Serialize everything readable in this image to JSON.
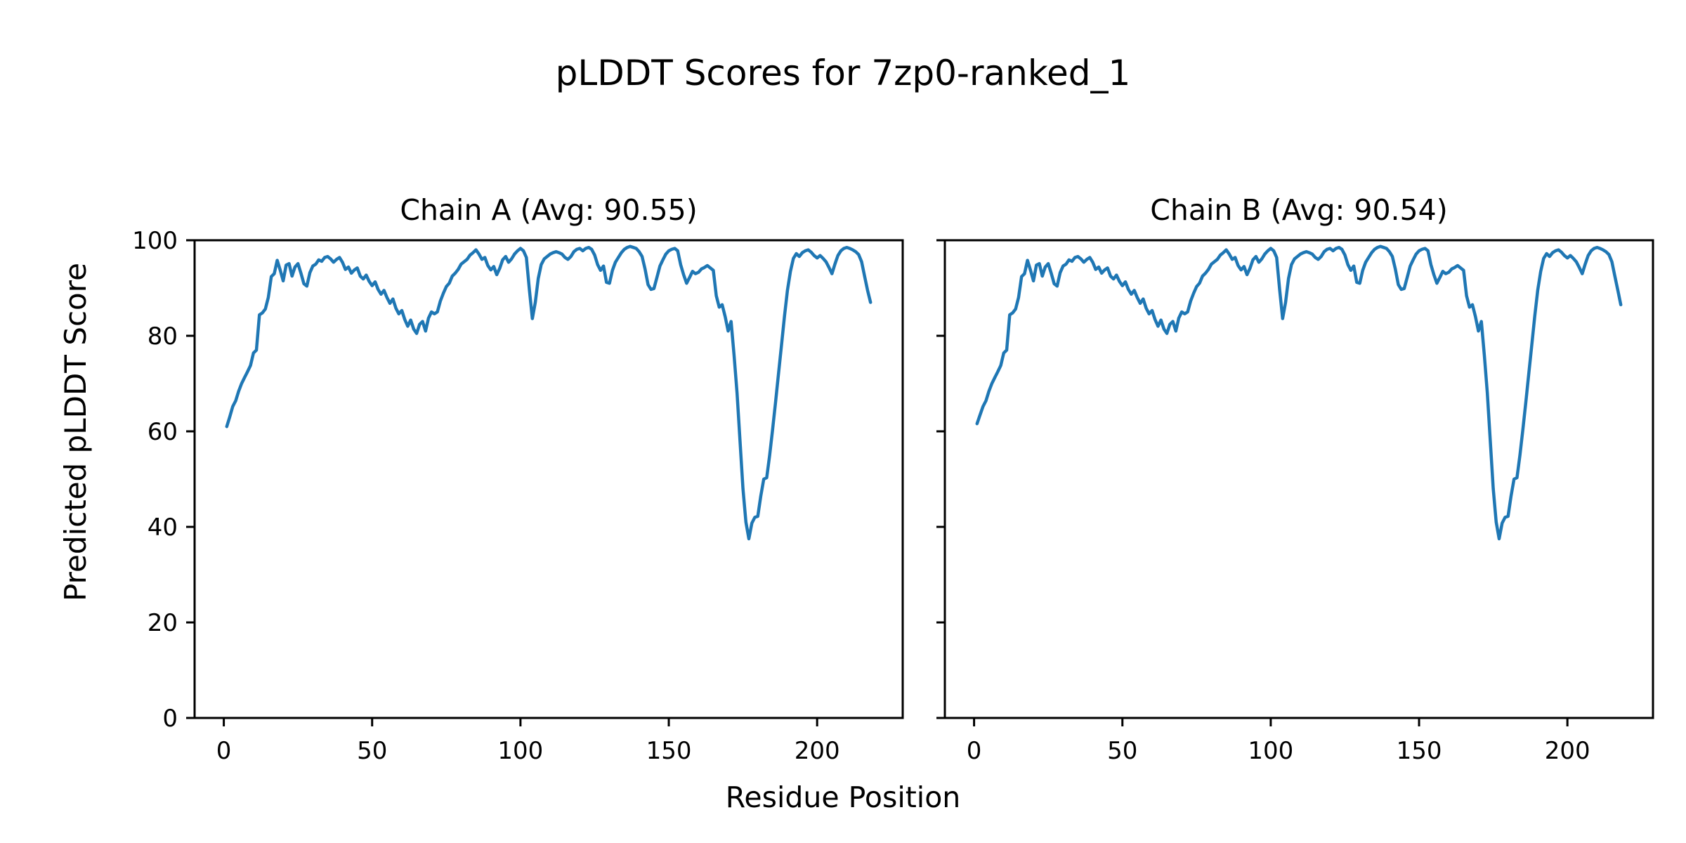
{
  "figure": {
    "title": "pLDDT Scores for 7zp0-ranked_1",
    "x_axis_label": "Residue Position",
    "y_axis_label": "Predicted pLDDT Score",
    "background_color": "#ffffff",
    "text_color": "#000000"
  },
  "chart_data": {
    "type": "line",
    "line_color": "#1f77b4",
    "axis_color": "#000000",
    "grid": false,
    "legend": "none",
    "x_ticks": [
      0,
      50,
      100,
      150,
      200
    ],
    "y_ticks": [
      0,
      20,
      40,
      60,
      80,
      100
    ],
    "xlim": [
      -9.85,
      228.85
    ],
    "ylim": [
      0,
      100
    ],
    "x_start": 1,
    "x_step": 1,
    "subplots": [
      {
        "title": "Chain A (Avg: 90.55)",
        "chain": "A",
        "avg": 90.55,
        "values": [
          61.0,
          63.0,
          65.2,
          66.4,
          68.4,
          70.0,
          71.3,
          72.5,
          73.8,
          76.4,
          77.0,
          84.4,
          84.8,
          85.6,
          88.0,
          92.4,
          93.0,
          95.8,
          93.8,
          91.5,
          94.8,
          95.1,
          92.5,
          94.4,
          95.1,
          93.1,
          90.9,
          90.4,
          93.2,
          94.6,
          95.0,
          95.9,
          95.6,
          96.4,
          96.6,
          96.1,
          95.4,
          96.0,
          96.4,
          95.4,
          93.9,
          94.4,
          93.1,
          93.8,
          94.2,
          92.5,
          91.9,
          92.7,
          91.4,
          90.5,
          91.3,
          89.7,
          88.7,
          89.5,
          88.0,
          86.8,
          87.7,
          85.8,
          84.6,
          85.3,
          83.4,
          82.0,
          83.3,
          81.4,
          80.5,
          82.4,
          83.0,
          81.0,
          83.7,
          85.0,
          84.6,
          85.0,
          87.3,
          88.9,
          90.3,
          91.0,
          92.5,
          93.1,
          93.9,
          95.0,
          95.5,
          96.0,
          96.9,
          97.4,
          98.0,
          97.1,
          96.0,
          96.4,
          94.7,
          93.8,
          94.5,
          92.8,
          94.1,
          95.9,
          96.6,
          95.4,
          96.1,
          97.1,
          97.8,
          98.3,
          97.8,
          96.4,
          89.6,
          83.6,
          87.0,
          92.0,
          94.9,
          96.1,
          96.6,
          97.1,
          97.4,
          97.6,
          97.4,
          97.1,
          96.4,
          96.0,
          96.6,
          97.6,
          98.1,
          98.3,
          97.8,
          98.3,
          98.5,
          98.1,
          96.9,
          94.9,
          93.7,
          94.6,
          91.2,
          91.0,
          93.7,
          95.4,
          96.4,
          97.4,
          98.1,
          98.5,
          98.7,
          98.5,
          98.3,
          97.6,
          96.6,
          94.0,
          90.7,
          89.7,
          89.9,
          92.2,
          94.6,
          95.9,
          97.1,
          97.8,
          98.1,
          98.3,
          97.8,
          94.9,
          92.8,
          91.0,
          92.2,
          93.5,
          93.0,
          93.3,
          94.0,
          94.3,
          94.7,
          94.2,
          93.7,
          88.4,
          86.0,
          86.5,
          84.0,
          81.0,
          83.0,
          76.0,
          68.0,
          58.0,
          48.0,
          41.0,
          37.5,
          40.8,
          42.0,
          42.2,
          46.4,
          50.0,
          50.3,
          55.0,
          60.4,
          66.1,
          72.2,
          78.1,
          84.1,
          89.5,
          93.5,
          96.2,
          97.2,
          96.6,
          97.4,
          97.8,
          98.0,
          97.5,
          96.8,
          96.3,
          96.8,
          96.2,
          95.5,
          94.3,
          93.0,
          95.0,
          96.8,
          97.8,
          98.3,
          98.5,
          98.3,
          98.0,
          97.6,
          97.0,
          95.5,
          92.5,
          89.5,
          87.0
        ]
      },
      {
        "title": "Chain B (Avg: 90.54)",
        "chain": "B",
        "avg": 90.54,
        "values": [
          61.6,
          63.4,
          65.2,
          66.4,
          68.4,
          70.0,
          71.3,
          72.5,
          73.8,
          76.4,
          77.0,
          84.4,
          84.8,
          85.6,
          88.0,
          92.4,
          93.0,
          95.8,
          93.8,
          91.5,
          94.8,
          95.1,
          92.5,
          94.4,
          95.1,
          93.1,
          90.9,
          90.4,
          93.2,
          94.6,
          95.0,
          95.9,
          95.6,
          96.4,
          96.6,
          96.1,
          95.4,
          96.0,
          96.4,
          95.4,
          93.9,
          94.4,
          93.1,
          93.8,
          94.2,
          92.5,
          91.9,
          92.7,
          91.4,
          90.5,
          91.3,
          89.7,
          88.7,
          89.5,
          88.0,
          86.8,
          87.7,
          85.8,
          84.6,
          85.3,
          83.4,
          82.0,
          83.3,
          81.4,
          80.5,
          82.4,
          83.0,
          81.0,
          83.7,
          85.0,
          84.6,
          85.0,
          87.3,
          88.9,
          90.3,
          91.0,
          92.5,
          93.1,
          93.9,
          95.0,
          95.5,
          96.0,
          96.9,
          97.4,
          98.0,
          97.1,
          96.0,
          96.4,
          94.7,
          93.8,
          94.5,
          92.8,
          94.1,
          95.9,
          96.6,
          95.4,
          96.1,
          97.1,
          97.8,
          98.3,
          97.8,
          96.4,
          89.6,
          83.6,
          87.0,
          92.0,
          94.9,
          96.1,
          96.6,
          97.1,
          97.4,
          97.6,
          97.4,
          97.1,
          96.4,
          96.0,
          96.6,
          97.6,
          98.1,
          98.3,
          97.8,
          98.3,
          98.5,
          98.1,
          96.9,
          94.9,
          93.7,
          94.6,
          91.2,
          91.0,
          93.7,
          95.4,
          96.4,
          97.4,
          98.1,
          98.5,
          98.7,
          98.5,
          98.3,
          97.6,
          96.6,
          94.0,
          90.7,
          89.7,
          89.9,
          92.2,
          94.6,
          95.9,
          97.1,
          97.8,
          98.1,
          98.3,
          97.8,
          94.9,
          92.8,
          91.0,
          92.2,
          93.5,
          93.0,
          93.3,
          94.0,
          94.3,
          94.7,
          94.2,
          93.7,
          88.4,
          86.0,
          86.5,
          84.0,
          81.0,
          83.0,
          76.0,
          68.0,
          58.0,
          48.0,
          41.0,
          37.5,
          40.8,
          42.0,
          42.2,
          46.4,
          50.0,
          50.3,
          55.0,
          60.4,
          66.1,
          72.2,
          78.1,
          84.1,
          89.5,
          93.5,
          96.2,
          97.2,
          96.6,
          97.4,
          97.8,
          98.0,
          97.5,
          96.8,
          96.3,
          96.8,
          96.2,
          95.5,
          94.3,
          93.0,
          95.0,
          96.8,
          97.8,
          98.3,
          98.5,
          98.3,
          98.0,
          97.6,
          97.0,
          95.5,
          92.5,
          89.5,
          86.5
        ]
      }
    ]
  }
}
